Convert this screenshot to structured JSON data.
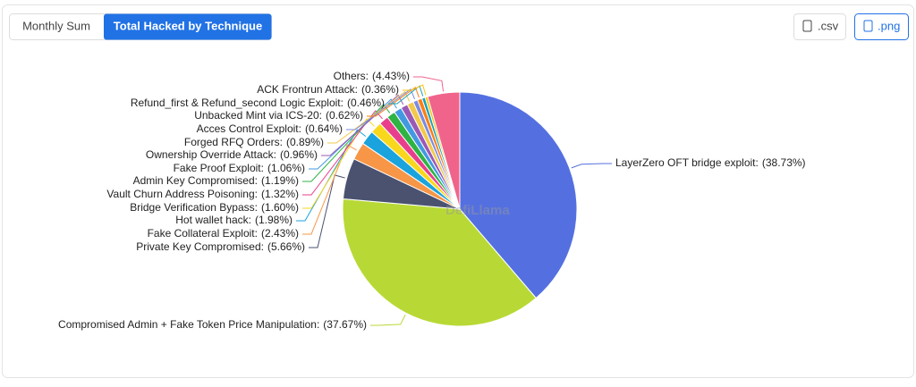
{
  "tabs": [
    "Monthly Sum",
    "Total Hacked by Technique"
  ],
  "buttons": [
    ".csv",
    ".png"
  ],
  "watermark": "DefiLlama",
  "chart_data": {
    "type": "pie",
    "label_separator": ":",
    "categories": [
      "LayerZero OFT bridge exploit",
      "Compromised Admin + Fake Token Price Manipulation",
      "Private Key Compromised",
      "Fake Collateral Exploit",
      "Hot wallet hack",
      "Bridge Verification Bypass",
      "Vault Churn Address Poisoning",
      "Admin Key Compromised",
      "Fake Proof Exploit",
      "Ownership Override Attack",
      "Forged RFQ Orders",
      "Acces Control Exploit",
      "Unbacked Mint via ICS-20",
      "Refund_first & Refund_second Logic Exploit",
      "ACK Frontrun Attack",
      "Others"
    ],
    "values": [
      38.73,
      37.67,
      5.66,
      2.43,
      1.98,
      1.6,
      1.32,
      1.19,
      1.06,
      0.96,
      0.89,
      0.64,
      0.62,
      0.46,
      0.36,
      4.43
    ],
    "value_labels": [
      "(38.73%)",
      "(37.67%)",
      "(5.66%)",
      "(2.43%)",
      "(1.98%)",
      "(1.60%)",
      "(1.32%)",
      "(1.19%)",
      "(1.06%)",
      "(0.96%)",
      "(0.89%)",
      "(0.64%)",
      "(0.62%)",
      "(0.46%)",
      "(0.36%)",
      "(4.43%)"
    ],
    "colors": [
      "#5470e0",
      "#b8d935",
      "#4a5270",
      "#f79646",
      "#1aa3dc",
      "#f9d71c",
      "#e83e8c",
      "#2fb344",
      "#4299e1",
      "#9b59b6",
      "#f2c94c",
      "#7b8cde",
      "#fd7e14",
      "#17a2b8",
      "#ffc107",
      "#f0648c"
    ]
  }
}
